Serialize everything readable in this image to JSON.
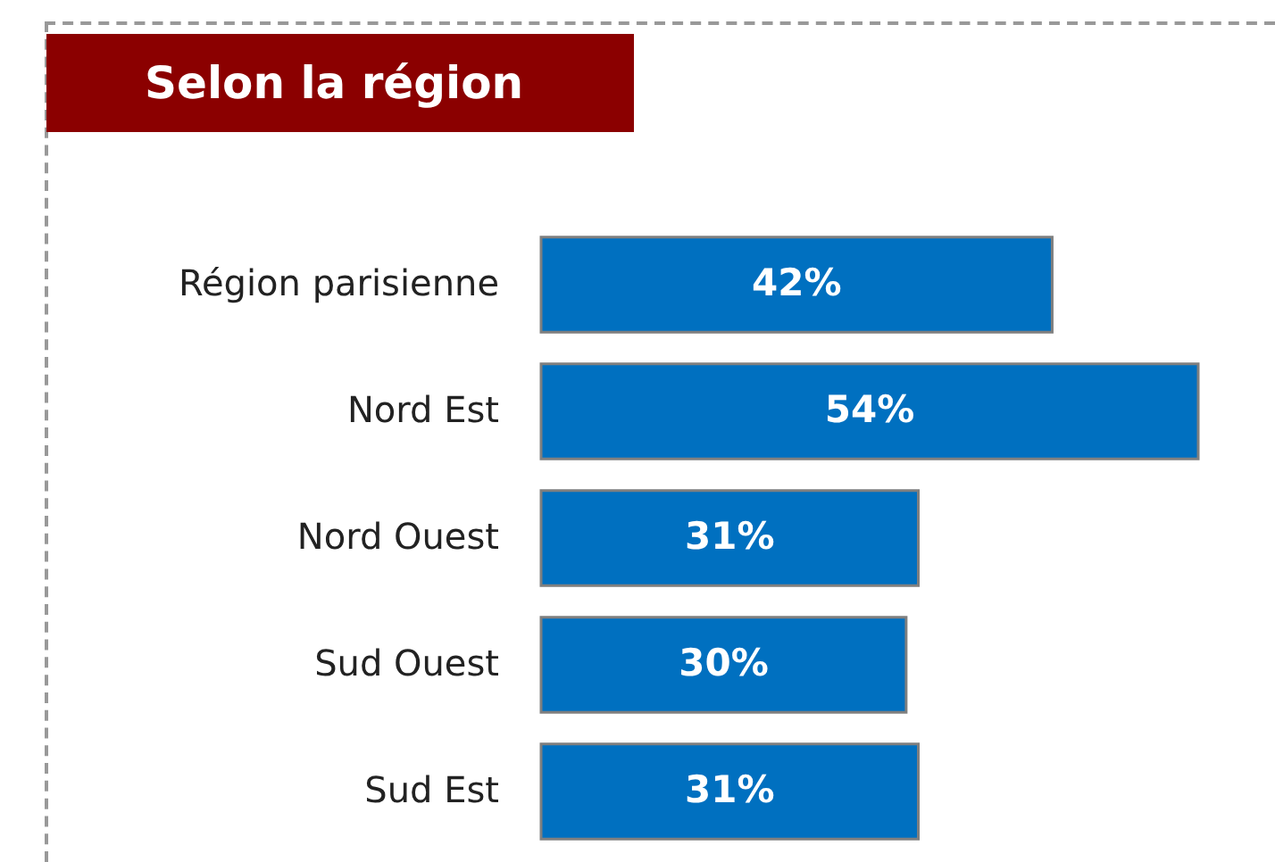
{
  "chart_data": {
    "type": "bar",
    "title": "Selon la région",
    "orientation": "horizontal",
    "categories": [
      "Région parisienne",
      "Nord Est",
      "Nord Ouest",
      "Sud Ouest",
      "Sud Est"
    ],
    "values": [
      42,
      54,
      31,
      30,
      31
    ],
    "value_labels": [
      "42%",
      "54%",
      "31%",
      "30%",
      "31%"
    ],
    "color": "#0070c0"
  }
}
